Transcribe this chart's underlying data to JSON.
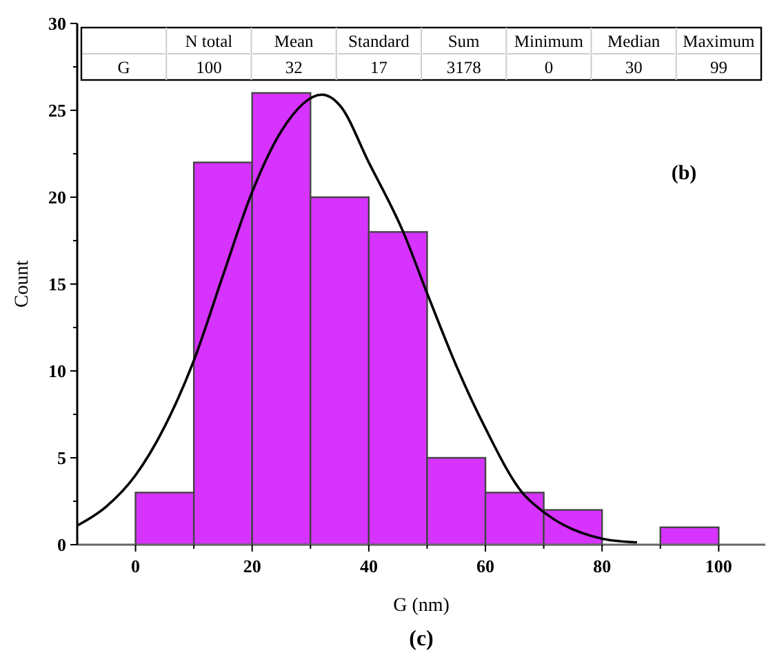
{
  "chart_data": {
    "type": "histogram",
    "xlabel": "G (nm)",
    "ylabel": "Count",
    "bins": [
      0,
      10,
      20,
      30,
      40,
      50,
      60,
      70,
      80,
      90,
      100
    ],
    "values": [
      3,
      22,
      26,
      20,
      18,
      5,
      3,
      2,
      0,
      1
    ],
    "color": "#d633ff",
    "series": [
      {
        "type": "line",
        "color": "#000000",
        "x": [
          -10,
          -5,
          0,
          5,
          10,
          15,
          20,
          25,
          32,
          35,
          40,
          45.9,
          50.2,
          55,
          60,
          66.3,
          70.3,
          80.1,
          86
        ],
        "values": [
          1.1,
          2.2,
          4.0,
          6.8,
          10.6,
          15.5,
          20.3,
          23.8,
          25.9,
          25.3,
          22.0,
          18.0,
          14.3,
          10.3,
          6.7,
          3.0,
          1.8,
          0.34,
          0.13
        ]
      }
    ],
    "xlim": [
      -10,
      108
    ],
    "xticks": [
      0,
      {
        "value": 10,
        "label": null
      },
      20,
      {
        "value": 30,
        "label": null
      },
      40,
      {
        "value": 50,
        "label": null
      },
      60,
      {
        "value": 70,
        "label": null
      },
      80,
      {
        "value": 90,
        "label": null
      },
      100
    ],
    "ylim": [
      0,
      30
    ],
    "yticks": [
      0,
      {
        "value": 2.5,
        "label": null
      },
      5,
      {
        "value": 7.5,
        "label": null
      },
      10,
      {
        "value": 12.5,
        "label": null
      },
      15,
      {
        "value": 17.5,
        "label": null
      },
      20,
      {
        "value": 22.5,
        "label": null
      },
      25,
      {
        "value": 27.5,
        "label": null
      },
      30
    ],
    "grid": false,
    "annotations": [
      "(b)",
      "(c)",
      "N total",
      "Mean",
      "Standard",
      "Sum",
      "Minimum",
      "Median",
      "Maximum",
      "G",
      "100",
      "32",
      "17",
      "3178",
      "0",
      "30",
      "99"
    ]
  }
}
